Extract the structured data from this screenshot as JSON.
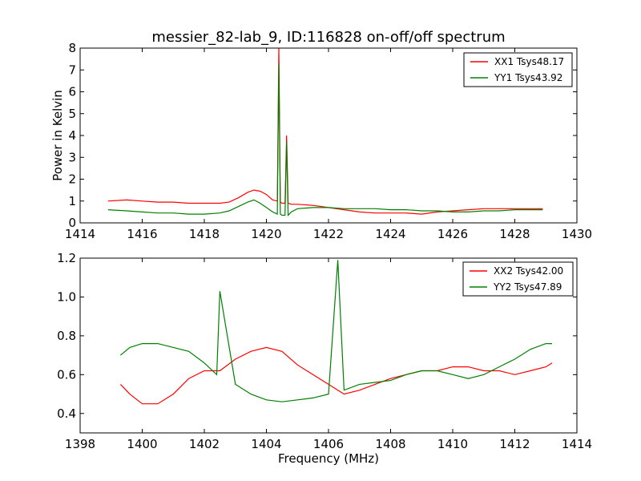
{
  "figure": {
    "title": "messier_82-lab_9, ID:116828 on-off/off spectrum",
    "xlabel": "Frequency (MHz)"
  },
  "chart_data": [
    {
      "type": "line",
      "title": "messier_82-lab_9, ID:116828 on-off/off spectrum",
      "xlabel": "",
      "ylabel": "Power in Kelvin",
      "xlim": [
        1414,
        1430
      ],
      "ylim": [
        0,
        8
      ],
      "xticks": [
        "1414",
        "1416",
        "1418",
        "1420",
        "1422",
        "1424",
        "1426",
        "1428",
        "1430"
      ],
      "yticks": [
        "0",
        "1",
        "2",
        "3",
        "4",
        "5",
        "6",
        "7",
        "8"
      ],
      "legend_position": "top-right",
      "grid": false,
      "series": [
        {
          "name": "XX1 Tsys48.17",
          "color": "#ff0000",
          "x": [
            1414.9,
            1415.5,
            1416.0,
            1416.5,
            1417.0,
            1417.5,
            1418.0,
            1418.5,
            1418.8,
            1419.1,
            1419.4,
            1419.6,
            1419.8,
            1420.0,
            1420.2,
            1420.35,
            1420.4,
            1420.45,
            1420.5,
            1420.6,
            1420.65,
            1420.7,
            1420.8,
            1421.0,
            1421.5,
            1422.0,
            1422.5,
            1423.0,
            1423.5,
            1424.0,
            1424.5,
            1425.0,
            1425.5,
            1426.0,
            1426.5,
            1427.0,
            1427.5,
            1428.0,
            1428.5,
            1428.9
          ],
          "y": [
            1.0,
            1.05,
            1.0,
            0.95,
            0.95,
            0.9,
            0.9,
            0.9,
            0.95,
            1.15,
            1.4,
            1.5,
            1.45,
            1.3,
            1.05,
            1.0,
            8.0,
            0.95,
            0.9,
            0.9,
            4.0,
            0.9,
            0.85,
            0.85,
            0.8,
            0.7,
            0.6,
            0.5,
            0.45,
            0.45,
            0.45,
            0.4,
            0.5,
            0.55,
            0.6,
            0.65,
            0.65,
            0.65,
            0.65,
            0.65
          ]
        },
        {
          "name": "YY1 Tsys43.92",
          "color": "#008000",
          "x": [
            1414.9,
            1415.5,
            1416.0,
            1416.5,
            1417.0,
            1417.5,
            1418.0,
            1418.5,
            1418.8,
            1419.1,
            1419.4,
            1419.6,
            1419.8,
            1420.0,
            1420.2,
            1420.35,
            1420.4,
            1420.45,
            1420.5,
            1420.6,
            1420.65,
            1420.7,
            1420.8,
            1421.0,
            1421.5,
            1422.0,
            1422.5,
            1423.0,
            1423.5,
            1424.0,
            1424.5,
            1425.0,
            1425.5,
            1426.0,
            1426.5,
            1427.0,
            1427.5,
            1428.0,
            1428.5,
            1428.9
          ],
          "y": [
            0.6,
            0.55,
            0.5,
            0.45,
            0.45,
            0.4,
            0.4,
            0.45,
            0.55,
            0.75,
            0.95,
            1.05,
            0.9,
            0.7,
            0.5,
            0.4,
            7.3,
            0.4,
            0.35,
            0.35,
            3.7,
            0.35,
            0.5,
            0.65,
            0.7,
            0.7,
            0.65,
            0.65,
            0.65,
            0.6,
            0.6,
            0.55,
            0.55,
            0.5,
            0.5,
            0.55,
            0.55,
            0.6,
            0.6,
            0.6
          ]
        }
      ]
    },
    {
      "type": "line",
      "title": "",
      "xlabel": "Frequency (MHz)",
      "ylabel": "",
      "xlim": [
        1398,
        1414
      ],
      "ylim": [
        0.3,
        1.2
      ],
      "xticks": [
        "1398",
        "1400",
        "1402",
        "1404",
        "1406",
        "1408",
        "1410",
        "1412",
        "1414"
      ],
      "yticks": [
        "0.4",
        "0.6",
        "0.8",
        "1.0",
        "1.2"
      ],
      "legend_position": "top-right",
      "grid": false,
      "series": [
        {
          "name": "XX2 Tsys42.00",
          "color": "#ff0000",
          "x": [
            1399.3,
            1399.6,
            1400.0,
            1400.5,
            1401.0,
            1401.5,
            1402.0,
            1402.5,
            1403.0,
            1403.5,
            1404.0,
            1404.5,
            1405.0,
            1405.5,
            1406.0,
            1406.5,
            1407.0,
            1407.5,
            1408.0,
            1408.5,
            1409.0,
            1409.5,
            1410.0,
            1410.5,
            1411.0,
            1411.5,
            1412.0,
            1412.5,
            1413.0,
            1413.2
          ],
          "y": [
            0.55,
            0.5,
            0.45,
            0.45,
            0.5,
            0.58,
            0.62,
            0.62,
            0.68,
            0.72,
            0.74,
            0.72,
            0.65,
            0.6,
            0.55,
            0.5,
            0.52,
            0.55,
            0.58,
            0.6,
            0.62,
            0.62,
            0.64,
            0.64,
            0.62,
            0.62,
            0.6,
            0.62,
            0.64,
            0.66
          ]
        },
        {
          "name": "YY2 Tsys47.89",
          "color": "#008000",
          "x": [
            1399.3,
            1399.6,
            1400.0,
            1400.5,
            1401.0,
            1401.5,
            1402.0,
            1402.4,
            1402.5,
            1403.0,
            1403.5,
            1404.0,
            1404.5,
            1405.0,
            1405.5,
            1406.0,
            1406.3,
            1406.5,
            1407.0,
            1407.5,
            1408.0,
            1408.5,
            1409.0,
            1409.5,
            1410.0,
            1410.5,
            1411.0,
            1411.5,
            1412.0,
            1412.5,
            1413.0,
            1413.2
          ],
          "y": [
            0.7,
            0.74,
            0.76,
            0.76,
            0.74,
            0.72,
            0.66,
            0.6,
            1.03,
            0.55,
            0.5,
            0.47,
            0.46,
            0.47,
            0.48,
            0.5,
            1.19,
            0.52,
            0.55,
            0.56,
            0.57,
            0.6,
            0.62,
            0.62,
            0.6,
            0.58,
            0.6,
            0.64,
            0.68,
            0.73,
            0.76,
            0.76
          ]
        }
      ]
    }
  ]
}
